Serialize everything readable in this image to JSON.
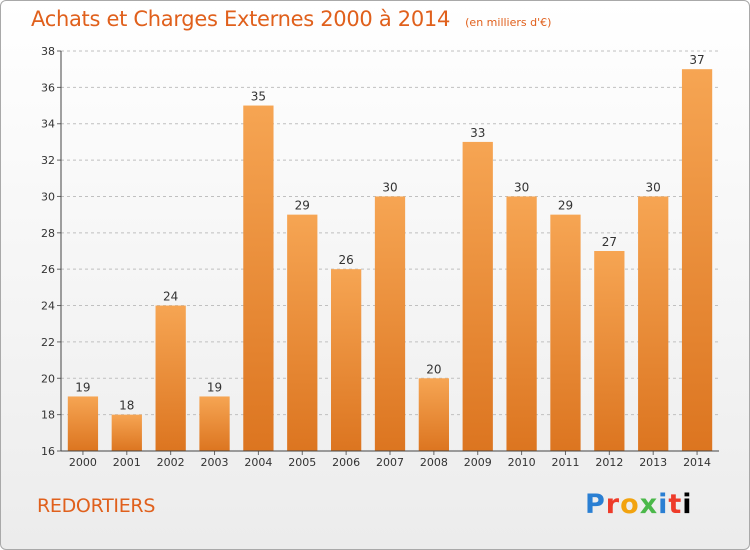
{
  "header": {
    "title": "Achats et Charges Externes 2000 à 2014",
    "unit": "(en milliers d'€)"
  },
  "footer": {
    "commune": "REDORTIERS",
    "brand": "Proxiti"
  },
  "colors": {
    "bar_light": "#f6a553",
    "bar_dark": "#dc7520",
    "title": "#e0601c",
    "grid": "#c0c0c0"
  },
  "chart_data": {
    "type": "bar",
    "title": "Achats et Charges Externes 2000 à 2014",
    "subtitle": "(en milliers d'€)",
    "xlabel": "",
    "ylabel": "",
    "categories": [
      "2000",
      "2001",
      "2002",
      "2003",
      "2004",
      "2005",
      "2006",
      "2007",
      "2008",
      "2009",
      "2010",
      "2011",
      "2012",
      "2013",
      "2014"
    ],
    "values": [
      19,
      18,
      24,
      19,
      35,
      29,
      26,
      30,
      20,
      33,
      30,
      29,
      27,
      30,
      37
    ],
    "ylim": [
      16,
      38
    ],
    "yticks": [
      16,
      18,
      20,
      22,
      24,
      26,
      28,
      30,
      32,
      34,
      36,
      38
    ],
    "grid": true,
    "legend": "none",
    "data_labels": true
  }
}
